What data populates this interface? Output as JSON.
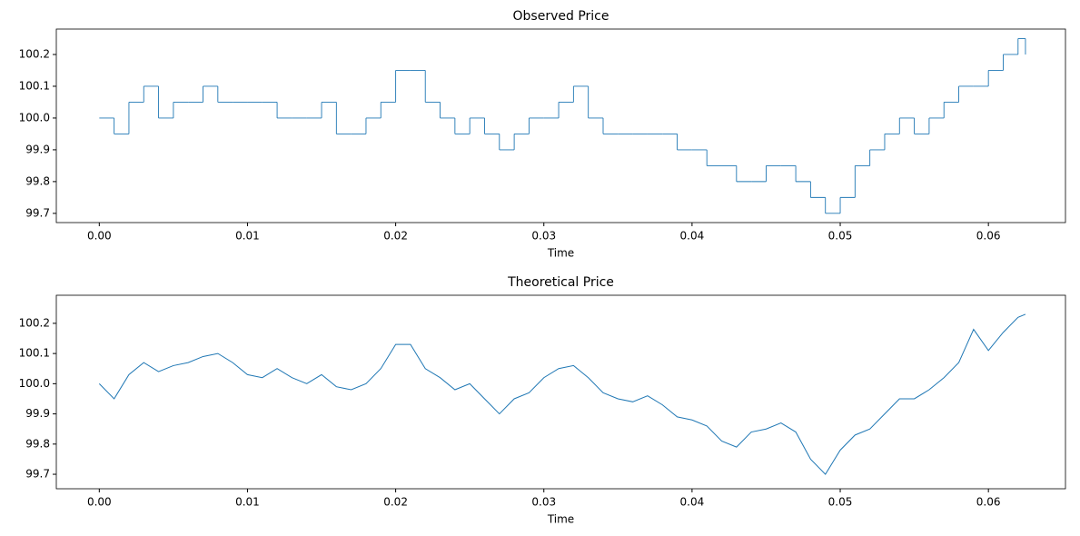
{
  "chart_data": [
    {
      "type": "line",
      "title": "Observed Price",
      "xlabel": "Time",
      "step": true,
      "color": "#1f77b4",
      "x": [
        0,
        0.001,
        0.002,
        0.003,
        0.004,
        0.005,
        0.006,
        0.007,
        0.008,
        0.009,
        0.01,
        0.011,
        0.012,
        0.013,
        0.014,
        0.015,
        0.016,
        0.017,
        0.018,
        0.019,
        0.02,
        0.021,
        0.022,
        0.023,
        0.024,
        0.025,
        0.026,
        0.027,
        0.028,
        0.029,
        0.03,
        0.031,
        0.032,
        0.033,
        0.034,
        0.035,
        0.036,
        0.037,
        0.038,
        0.039,
        0.04,
        0.041,
        0.042,
        0.043,
        0.044,
        0.045,
        0.046,
        0.047,
        0.048,
        0.049,
        0.05,
        0.051,
        0.052,
        0.053,
        0.054,
        0.055,
        0.056,
        0.057,
        0.058,
        0.059,
        0.06,
        0.061,
        0.062,
        0.0625
      ],
      "values": [
        100.0,
        99.95,
        100.05,
        100.1,
        100.0,
        100.05,
        100.05,
        100.1,
        100.05,
        100.05,
        100.05,
        100.05,
        100.0,
        100.0,
        100.0,
        100.05,
        99.95,
        99.95,
        100.0,
        100.05,
        100.15,
        100.15,
        100.05,
        100.0,
        99.95,
        100.0,
        99.95,
        99.9,
        99.95,
        100.0,
        100.0,
        100.05,
        100.1,
        100.0,
        99.95,
        99.95,
        99.95,
        99.95,
        99.95,
        99.9,
        99.9,
        99.85,
        99.85,
        99.8,
        99.8,
        99.85,
        99.85,
        99.8,
        99.75,
        99.7,
        99.75,
        99.85,
        99.9,
        99.95,
        100.0,
        99.95,
        100.0,
        100.05,
        100.1,
        100.1,
        100.15,
        100.2,
        100.25,
        100.2
      ],
      "xlim": [
        -0.0029,
        0.0652
      ],
      "ylim": [
        99.671,
        100.28
      ],
      "xticks": [
        {
          "value": 0,
          "label": "0.00"
        },
        0.01,
        0.02,
        0.03,
        0.04,
        0.05,
        0.06
      ],
      "yticks": [
        99.7,
        99.8,
        99.9,
        {
          "value": 100,
          "label": "100.0"
        },
        100.1,
        100.2
      ]
    },
    {
      "type": "line",
      "title": "Theoretical Price",
      "xlabel": "Time",
      "step": false,
      "color": "#1f77b4",
      "x": [
        0,
        0.001,
        0.002,
        0.003,
        0.004,
        0.005,
        0.006,
        0.007,
        0.008,
        0.009,
        0.01,
        0.011,
        0.012,
        0.013,
        0.014,
        0.015,
        0.016,
        0.017,
        0.018,
        0.019,
        0.02,
        0.021,
        0.022,
        0.023,
        0.024,
        0.025,
        0.026,
        0.027,
        0.028,
        0.029,
        0.03,
        0.031,
        0.032,
        0.033,
        0.034,
        0.035,
        0.036,
        0.037,
        0.038,
        0.039,
        0.04,
        0.041,
        0.042,
        0.043,
        0.044,
        0.045,
        0.046,
        0.047,
        0.048,
        0.049,
        0.05,
        0.051,
        0.052,
        0.053,
        0.054,
        0.055,
        0.056,
        0.057,
        0.058,
        0.059,
        0.06,
        0.061,
        0.062,
        0.0625
      ],
      "values": [
        100.0,
        99.95,
        100.03,
        100.07,
        100.04,
        100.06,
        100.07,
        100.09,
        100.1,
        100.07,
        100.03,
        100.02,
        100.05,
        100.02,
        100.0,
        100.03,
        99.99,
        99.98,
        100.0,
        100.05,
        100.13,
        100.13,
        100.05,
        100.02,
        99.98,
        100.0,
        99.95,
        99.9,
        99.95,
        99.97,
        100.02,
        100.05,
        100.06,
        100.02,
        99.97,
        99.95,
        99.94,
        99.96,
        99.93,
        99.89,
        99.88,
        99.86,
        99.81,
        99.79,
        99.84,
        99.85,
        99.87,
        99.84,
        99.75,
        99.7,
        99.78,
        99.83,
        99.85,
        99.9,
        99.95,
        99.95,
        99.98,
        100.02,
        100.07,
        100.18,
        100.11,
        100.17,
        100.22,
        100.23
      ],
      "xlim": [
        -0.0029,
        0.0652
      ],
      "ylim": [
        99.652,
        100.293
      ],
      "xticks": [
        {
          "value": 0,
          "label": "0.00"
        },
        0.01,
        0.02,
        0.03,
        0.04,
        0.05,
        0.06
      ],
      "yticks": [
        99.7,
        99.8,
        99.9,
        {
          "value": 100,
          "label": "100.0"
        },
        100.1,
        100.2
      ]
    }
  ]
}
